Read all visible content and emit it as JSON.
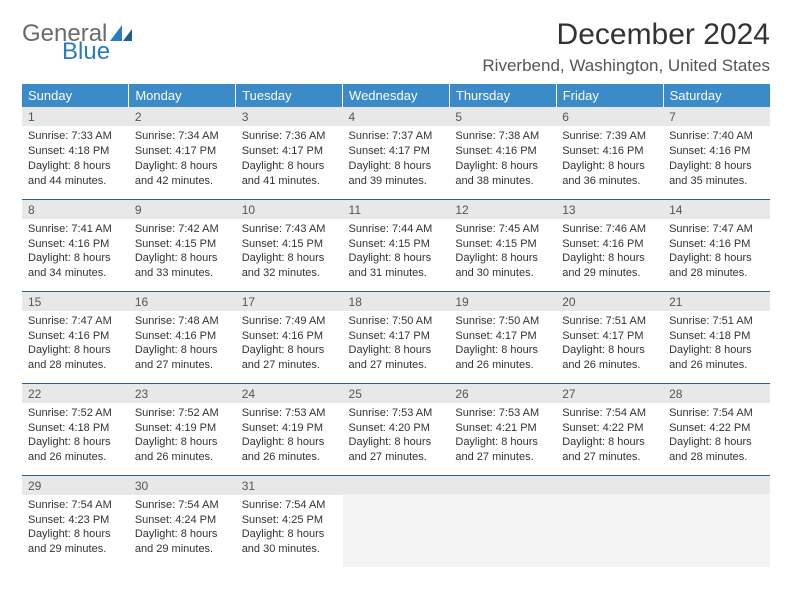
{
  "logo": {
    "text1": "General",
    "text2": "Blue",
    "icon_color": "#2a7bbf",
    "text1_color": "#6b6b6b"
  },
  "title": "December 2024",
  "location": "Riverbend, Washington, United States",
  "colors": {
    "header_bg": "#3b8bc9",
    "header_fg": "#ffffff",
    "daynum_bg": "#e8e8e8",
    "border": "#2a5f8a",
    "text": "#333333"
  },
  "weekdays": [
    "Sunday",
    "Monday",
    "Tuesday",
    "Wednesday",
    "Thursday",
    "Friday",
    "Saturday"
  ],
  "weeks": [
    [
      {
        "n": "1",
        "sr": "7:33 AM",
        "ss": "4:18 PM",
        "dl": "8 hours and 44 minutes."
      },
      {
        "n": "2",
        "sr": "7:34 AM",
        "ss": "4:17 PM",
        "dl": "8 hours and 42 minutes."
      },
      {
        "n": "3",
        "sr": "7:36 AM",
        "ss": "4:17 PM",
        "dl": "8 hours and 41 minutes."
      },
      {
        "n": "4",
        "sr": "7:37 AM",
        "ss": "4:17 PM",
        "dl": "8 hours and 39 minutes."
      },
      {
        "n": "5",
        "sr": "7:38 AM",
        "ss": "4:16 PM",
        "dl": "8 hours and 38 minutes."
      },
      {
        "n": "6",
        "sr": "7:39 AM",
        "ss": "4:16 PM",
        "dl": "8 hours and 36 minutes."
      },
      {
        "n": "7",
        "sr": "7:40 AM",
        "ss": "4:16 PM",
        "dl": "8 hours and 35 minutes."
      }
    ],
    [
      {
        "n": "8",
        "sr": "7:41 AM",
        "ss": "4:16 PM",
        "dl": "8 hours and 34 minutes."
      },
      {
        "n": "9",
        "sr": "7:42 AM",
        "ss": "4:15 PM",
        "dl": "8 hours and 33 minutes."
      },
      {
        "n": "10",
        "sr": "7:43 AM",
        "ss": "4:15 PM",
        "dl": "8 hours and 32 minutes."
      },
      {
        "n": "11",
        "sr": "7:44 AM",
        "ss": "4:15 PM",
        "dl": "8 hours and 31 minutes."
      },
      {
        "n": "12",
        "sr": "7:45 AM",
        "ss": "4:15 PM",
        "dl": "8 hours and 30 minutes."
      },
      {
        "n": "13",
        "sr": "7:46 AM",
        "ss": "4:16 PM",
        "dl": "8 hours and 29 minutes."
      },
      {
        "n": "14",
        "sr": "7:47 AM",
        "ss": "4:16 PM",
        "dl": "8 hours and 28 minutes."
      }
    ],
    [
      {
        "n": "15",
        "sr": "7:47 AM",
        "ss": "4:16 PM",
        "dl": "8 hours and 28 minutes."
      },
      {
        "n": "16",
        "sr": "7:48 AM",
        "ss": "4:16 PM",
        "dl": "8 hours and 27 minutes."
      },
      {
        "n": "17",
        "sr": "7:49 AM",
        "ss": "4:16 PM",
        "dl": "8 hours and 27 minutes."
      },
      {
        "n": "18",
        "sr": "7:50 AM",
        "ss": "4:17 PM",
        "dl": "8 hours and 27 minutes."
      },
      {
        "n": "19",
        "sr": "7:50 AM",
        "ss": "4:17 PM",
        "dl": "8 hours and 26 minutes."
      },
      {
        "n": "20",
        "sr": "7:51 AM",
        "ss": "4:17 PM",
        "dl": "8 hours and 26 minutes."
      },
      {
        "n": "21",
        "sr": "7:51 AM",
        "ss": "4:18 PM",
        "dl": "8 hours and 26 minutes."
      }
    ],
    [
      {
        "n": "22",
        "sr": "7:52 AM",
        "ss": "4:18 PM",
        "dl": "8 hours and 26 minutes."
      },
      {
        "n": "23",
        "sr": "7:52 AM",
        "ss": "4:19 PM",
        "dl": "8 hours and 26 minutes."
      },
      {
        "n": "24",
        "sr": "7:53 AM",
        "ss": "4:19 PM",
        "dl": "8 hours and 26 minutes."
      },
      {
        "n": "25",
        "sr": "7:53 AM",
        "ss": "4:20 PM",
        "dl": "8 hours and 27 minutes."
      },
      {
        "n": "26",
        "sr": "7:53 AM",
        "ss": "4:21 PM",
        "dl": "8 hours and 27 minutes."
      },
      {
        "n": "27",
        "sr": "7:54 AM",
        "ss": "4:22 PM",
        "dl": "8 hours and 27 minutes."
      },
      {
        "n": "28",
        "sr": "7:54 AM",
        "ss": "4:22 PM",
        "dl": "8 hours and 28 minutes."
      }
    ],
    [
      {
        "n": "29",
        "sr": "7:54 AM",
        "ss": "4:23 PM",
        "dl": "8 hours and 29 minutes."
      },
      {
        "n": "30",
        "sr": "7:54 AM",
        "ss": "4:24 PM",
        "dl": "8 hours and 29 minutes."
      },
      {
        "n": "31",
        "sr": "7:54 AM",
        "ss": "4:25 PM",
        "dl": "8 hours and 30 minutes."
      },
      null,
      null,
      null,
      null
    ]
  ],
  "labels": {
    "sunrise": "Sunrise:",
    "sunset": "Sunset:",
    "daylight": "Daylight:"
  }
}
